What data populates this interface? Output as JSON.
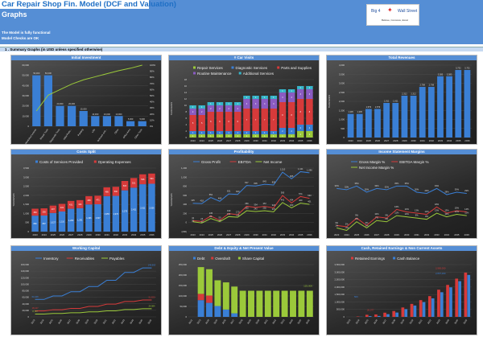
{
  "header": {
    "title": "Car Repair Shop Fin. Model (DCF and Valuation)",
    "subtitle": "Graphs",
    "note1": "The Model is fully functional",
    "note2": "Model Checks are OK",
    "logo": {
      "left": "Big 4",
      "right": "Wall Street",
      "tagline": "Believe, Conceive, Excel"
    }
  },
  "section": "1 . Summary Graphs (in USD unless specified otherwise)",
  "colors": {
    "header": "#558ed5",
    "blue": "#3a7fd5",
    "red": "#d63a3a",
    "green": "#9bc93a",
    "purple": "#8a5bc2",
    "teal": "#36b5c9"
  },
  "chart_data": [
    {
      "title": "Initial Investment",
      "type": "bar",
      "categories": [
        "Workshop Leases",
        "Repair Tools",
        "Diagnostic Tools",
        "Initial Parts...",
        "Painting",
        "Lifts",
        "Software and...",
        "Other",
        "Office Area",
        "Other Tools"
      ],
      "series": [
        {
          "values": [
            50000,
            50000,
            20000,
            20000,
            15000,
            10000,
            10000,
            10000,
            5000,
            5000
          ],
          "color": "#3a7fd5",
          "labels": true
        }
      ],
      "line2": {
        "values": [
          25,
          51,
          60,
          69,
          76,
          81,
          86,
          91,
          95,
          100
        ],
        "color": "#9bc93a"
      },
      "ylim": [
        0,
        60000
      ],
      "yticks": [
        0,
        10000,
        20000,
        30000,
        40000,
        50000,
        60000
      ],
      "y2ticks": [
        "0%",
        "10%",
        "20%",
        "30%",
        "40%",
        "50%",
        "60%",
        "70%",
        "80%",
        "90%",
        "100%"
      ],
      "rotate": true
    },
    {
      "title": "# Car Visits",
      "type": "stacked",
      "ylabel": "THOUSANDS",
      "categories": [
        "2023",
        "2024",
        "2025",
        "2026",
        "2027",
        "2028",
        "2029",
        "2030",
        "2031",
        "2032",
        "2033",
        "2034",
        "2035",
        "2036"
      ],
      "legend": [
        [
          "Repair Services",
          "Diagnostic Services",
          "Parts and Supplies"
        ],
        [
          "Routine Maintenance",
          "Additional Services"
        ]
      ],
      "series": [
        {
          "name": "Repair Services",
          "color": "#9bc93a",
          "values": [
            1,
            1,
            1,
            1,
            1,
            1,
            1,
            1,
            1,
            1,
            1,
            1,
            2,
            2
          ]
        },
        {
          "name": "Diagnostic Services",
          "color": "#3a7fd5",
          "values": [
            1,
            1,
            1,
            1,
            1,
            1,
            1,
            1,
            1,
            1,
            2,
            2,
            2,
            2
          ]
        },
        {
          "name": "Parts and Supplies",
          "color": "#d63a3a",
          "values": [
            5,
            5,
            6,
            6,
            6,
            6,
            7,
            7,
            7,
            7,
            8,
            8,
            8,
            8
          ]
        },
        {
          "name": "Routine Maintenance",
          "color": "#8a5bc2",
          "values": [
            2,
            2,
            2,
            2,
            2,
            2,
            3,
            3,
            3,
            3,
            3,
            3,
            3,
            3
          ]
        },
        {
          "name": "Additional Services",
          "color": "#36b5c9",
          "values": [
            1,
            1,
            1,
            1,
            1,
            1,
            1,
            1,
            1,
            1,
            1,
            1,
            1,
            1
          ]
        }
      ],
      "ylim": [
        0,
        18
      ],
      "yticks": [
        0,
        2,
        4,
        6,
        8,
        10,
        12,
        14,
        16,
        18
      ]
    },
    {
      "title": "Total Revenues",
      "type": "bar",
      "ylabel": "THOUSANDS",
      "categories": [
        "2023",
        "2024",
        "2025",
        "2026",
        "2027",
        "2028",
        "2029",
        "2030",
        "2031",
        "2032",
        "2033",
        "2034",
        "2035",
        "2036"
      ],
      "series": [
        {
          "values": [
            1305,
            1305,
            1579,
            1579,
            1911,
            1911,
            2312,
            2312,
            2798,
            2798,
            3385,
            3385,
            3732,
            3732
          ],
          "color": "#3a7fd5",
          "labels": true
        }
      ],
      "ylim": [
        0,
        4000
      ],
      "yticks": [
        0,
        500,
        1000,
        1500,
        2000,
        2500,
        3000,
        3500,
        4000
      ]
    },
    {
      "title": "Costs Split",
      "type": "stacked",
      "ylabel": "THOUSANDS",
      "categories": [
        "2023",
        "2024",
        "2025",
        "2026",
        "2027",
        "2028",
        "2029",
        "2030",
        "2031",
        "2032",
        "2033",
        "2034",
        "2035",
        "2036"
      ],
      "legend": [
        [
          "Costs of Services Provided",
          "Operating Expenses"
        ]
      ],
      "series": [
        {
          "name": "Costs of Services Provided",
          "color": "#3a7fd5",
          "values": [
            880,
            887,
            1027,
            1110,
            1260,
            1291,
            1496,
            1507,
            1955,
            1970,
            2275,
            2421,
            2611,
            2636
          ],
          "labels": true
        },
        {
          "name": "Operating Expenses",
          "color": "#d63a3a",
          "values": [
            383,
            395,
            407,
            419,
            431,
            444,
            458,
            471,
            486,
            500,
            515,
            531,
            546,
            563
          ],
          "labels": true
        }
      ],
      "ylim": [
        0,
        3500
      ],
      "yticks": [
        0,
        500,
        1000,
        1500,
        2000,
        2500,
        3000,
        3500
      ]
    },
    {
      "title": "Profitability",
      "type": "line",
      "ylabel": "THOUSANDS",
      "categories": [
        "2023",
        "2024",
        "2025",
        "2026",
        "2027",
        "2028",
        "2029",
        "2030",
        "2031",
        "2032",
        "2033",
        "2034",
        "2035",
        "2036"
      ],
      "legend": [
        [
          "Gross Profit",
          "EBITDA",
          "Net Income"
        ]
      ],
      "series": [
        {
          "name": "Gross Profit",
          "color": "#3a7fd5",
          "values": [
            425,
            418,
            552,
            469,
            631,
            620,
            817,
            805,
            843,
            828,
            1110,
            965,
            1121,
            1096
          ],
          "labels": true
        },
        {
          "name": "EBITDA",
          "color": "#d63a3a",
          "values": [
            42,
            23,
            145,
            50,
            199,
            170,
            359,
            334,
            357,
            324,
            595,
            434,
            574,
            533
          ],
          "labels": true
        },
        {
          "name": "Net Income",
          "color": "#9bc93a",
          "values": [
            20,
            -10,
            89,
            20,
            131,
            116,
            260,
            242,
            260,
            237,
            441,
            323,
            429,
            401
          ],
          "labels": true
        }
      ],
      "ylim": [
        -200,
        1200
      ],
      "yticks": [
        -200,
        0,
        200,
        400,
        600,
        800,
        1000,
        1200
      ]
    },
    {
      "title": "Income Statement Margins",
      "type": "line",
      "categories": [
        "2023",
        "2024",
        "2025",
        "2026",
        "2027",
        "2028",
        "2029",
        "2030",
        "2031",
        "2032",
        "2033",
        "2034",
        "2035",
        "2036"
      ],
      "legend": [
        [
          "Gross Margin %",
          "EBITDA Margin %"
        ],
        [
          "Net Income Margin %"
        ]
      ],
      "series": [
        {
          "name": "Gross Margin %",
          "color": "#3a7fd5",
          "values": [
            33,
            32,
            35,
            30,
            33,
            32,
            35,
            35,
            30,
            29,
            33,
            28,
            30,
            29
          ],
          "labels": true,
          "pct": true
        },
        {
          "name": "EBITDA Margin %",
          "color": "#d63a3a",
          "values": [
            3,
            2,
            9,
            3,
            10,
            9,
            16,
            14,
            13,
            12,
            18,
            13,
            15,
            14
          ],
          "labels": true,
          "pct": true
        },
        {
          "name": "Net Income Margin %",
          "color": "#9bc93a",
          "values": [
            1,
            -1,
            6,
            1,
            7,
            6,
            11,
            10,
            9,
            8,
            13,
            10,
            12,
            11
          ],
          "labels": true,
          "pct": true
        }
      ],
      "ylim": [
        -2,
        45
      ],
      "yticks": []
    },
    {
      "title": "Working Capital",
      "type": "line",
      "categories": [
        "2023",
        "2024",
        "2025",
        "2026",
        "2027",
        "2028",
        "2029",
        "2030",
        "2031",
        "2032",
        "2033",
        "2034",
        "2035",
        "2036"
      ],
      "rotate": true,
      "legend": [
        [
          "Inventory",
          "Receivables",
          "Payables"
        ]
      ],
      "series": [
        {
          "name": "Inventory",
          "color": "#3a7fd5",
          "values": [
            53428,
            53428,
            64000,
            64000,
            77000,
            77000,
            93000,
            93000,
            112000,
            112000,
            136000,
            136000,
            149963,
            149963
          ],
          "ends": true
        },
        {
          "name": "Receivables",
          "color": "#d63a3a",
          "values": [
            18127,
            18127,
            22000,
            22000,
            26000,
            26000,
            32000,
            32000,
            39000,
            39000,
            47000,
            47000,
            51820,
            51820
          ],
          "ends": true
        },
        {
          "name": "Payables",
          "color": "#9bc93a",
          "values": [
            8737,
            8737,
            10500,
            10500,
            12600,
            12600,
            15300,
            15300,
            18500,
            18500,
            22400,
            22400,
            24984,
            24984
          ],
          "ends": true
        }
      ],
      "ylim": [
        0,
        160000
      ],
      "yticks": [
        0,
        20000,
        40000,
        60000,
        80000,
        100000,
        120000,
        140000,
        160000
      ]
    },
    {
      "title": "Debt & Equity & Net Present Value",
      "type": "stacked",
      "categories": [
        "2022",
        "2023",
        "2024",
        "2025",
        "2026",
        "2027",
        "2028",
        "2029",
        "2030",
        "2031",
        "2032",
        "2033",
        "2034",
        "2035",
        "2036"
      ],
      "rotate": true,
      "legend": [
        [
          "Debt",
          "Overdraft",
          "Share Capital"
        ]
      ],
      "series": [
        {
          "name": "Debt",
          "color": "#3a7fd5",
          "values": [
            0,
            80000,
            67000,
            52000,
            35000,
            17000,
            0,
            0,
            0,
            0,
            0,
            0,
            0,
            0,
            0
          ]
        },
        {
          "name": "Overdraft",
          "color": "#d63a3a",
          "values": [
            0,
            30000,
            35000,
            0,
            0,
            0,
            0,
            0,
            0,
            0,
            0,
            0,
            0,
            0,
            0
          ]
        },
        {
          "name": "Share Capital",
          "color": "#9bc93a",
          "values": [
            0,
            128000,
            126000,
            123000,
            130000,
            128000,
            125000,
            125000,
            125000,
            125000,
            125000,
            125000,
            125000,
            125000,
            125000
          ]
        }
      ],
      "end_label": "125,000",
      "ylim": [
        0,
        250000
      ],
      "yticks": [
        0,
        50000,
        100000,
        150000,
        200000,
        250000
      ]
    },
    {
      "title": "Cash, Retained Earnings & Non Current Assets",
      "type": "clustered",
      "categories": [
        "2023",
        "2024",
        "2025",
        "2026",
        "2027",
        "2028",
        "2029",
        "2030",
        "2031",
        "2032",
        "2033",
        "2034",
        "2035",
        "2036"
      ],
      "rotate": true,
      "legend": [
        [
          "Retained Earnings",
          "Cash Balance"
        ]
      ],
      "series": [
        {
          "name": "Retained Earnings",
          "color": "#d63a3a",
          "values": [
            0,
            26077,
            140000,
            160000,
            280000,
            390000,
            630000,
            870000,
            1120000,
            1390000,
            1820000,
            2140000,
            2560000,
            2965000
          ]
        },
        {
          "name": "Cash Balance",
          "color": "#3a7fd5",
          "values": [
            500,
            10000,
            50000,
            60000,
            180000,
            290000,
            520000,
            760000,
            990000,
            1240000,
            1650000,
            1980000,
            2390000,
            2807000
          ]
        }
      ],
      "callouts": [
        {
          "text": "500",
          "color": "#3a7fd5"
        },
        {
          "text": "26,077",
          "color": "#d63a3a"
        },
        {
          "text": "2,965,000",
          "color": "#d63a3a"
        },
        {
          "text": "2,807,000",
          "color": "#3a7fd5"
        }
      ],
      "ylim": [
        0,
        3500000
      ],
      "yticks": [
        0,
        500000,
        1000000,
        1500000,
        2000000,
        2500000,
        3000000,
        3500000
      ]
    }
  ]
}
